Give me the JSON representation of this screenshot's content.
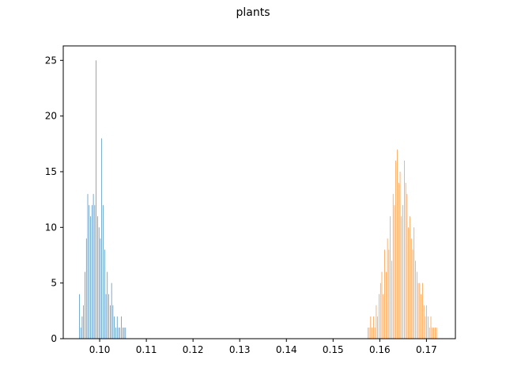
{
  "chart_data": {
    "type": "bar",
    "title": "plants",
    "xlabel": "",
    "ylabel": "",
    "xlim": [
      0.0922,
      0.1762
    ],
    "ylim": [
      0,
      26.3
    ],
    "grid": false,
    "legend": "none",
    "x_ticks": [
      0.1,
      0.11,
      0.12,
      0.13,
      0.14,
      0.15,
      0.16,
      0.17
    ],
    "x_tick_labels": [
      "0.10",
      "0.11",
      "0.12",
      "0.13",
      "0.14",
      "0.15",
      "0.16",
      "0.17"
    ],
    "y_ticks": [
      0,
      5,
      10,
      15,
      20,
      25
    ],
    "y_tick_labels": [
      "0",
      "5",
      "10",
      "15",
      "20",
      "25"
    ],
    "bin_width": 0.0001,
    "series": [
      {
        "color": "#1f77b4",
        "bin_starts": [
          0.0956,
          0.0959,
          0.0962,
          0.0965,
          0.0968,
          0.0971,
          0.0974,
          0.0977,
          0.098,
          0.0983,
          0.0986,
          0.0989,
          0.0992,
          0.0995,
          0.0998,
          0.1001,
          0.1004,
          0.1007,
          0.101,
          0.1013,
          0.1016,
          0.1019,
          0.1022,
          0.1025,
          0.1028,
          0.1031,
          0.1034,
          0.1037,
          0.104,
          0.1043,
          0.1046,
          0.1049,
          0.1052,
          0.1055
        ],
        "counts": [
          4,
          1,
          2,
          3,
          6,
          9,
          13,
          12,
          11,
          12,
          13,
          12,
          25,
          11,
          10,
          9,
          18,
          12,
          8,
          4,
          6,
          4,
          3,
          5,
          3,
          2,
          1,
          2,
          1,
          1,
          2,
          1,
          1,
          1
        ]
      },
      {
        "color": "#ff7f0e",
        "bin_starts": [
          0.1574,
          0.1577,
          0.158,
          0.1583,
          0.1586,
          0.1589,
          0.1592,
          0.1595,
          0.1598,
          0.1601,
          0.1604,
          0.1607,
          0.161,
          0.1613,
          0.1616,
          0.1619,
          0.1622,
          0.1625,
          0.1628,
          0.1631,
          0.1634,
          0.1637,
          0.164,
          0.1643,
          0.1646,
          0.1649,
          0.1652,
          0.1655,
          0.1658,
          0.1661,
          0.1664,
          0.1667,
          0.167,
          0.1673,
          0.1676,
          0.1679,
          0.1682,
          0.1685,
          0.1688,
          0.1691,
          0.1694,
          0.1697,
          0.17,
          0.1703,
          0.1706,
          0.1709,
          0.1712,
          0.1715,
          0.1718,
          0.1721
        ],
        "counts": [
          1,
          1,
          2,
          1,
          2,
          1,
          3,
          2,
          4,
          5,
          6,
          4,
          8,
          6,
          9,
          8,
          11,
          7,
          13,
          12,
          16,
          17,
          14,
          15,
          11,
          12,
          16,
          14,
          13,
          10,
          11,
          9,
          8,
          10,
          7,
          6,
          5,
          5,
          4,
          5,
          3,
          2,
          3,
          2,
          1,
          2,
          1,
          1,
          1,
          1
        ]
      }
    ]
  }
}
